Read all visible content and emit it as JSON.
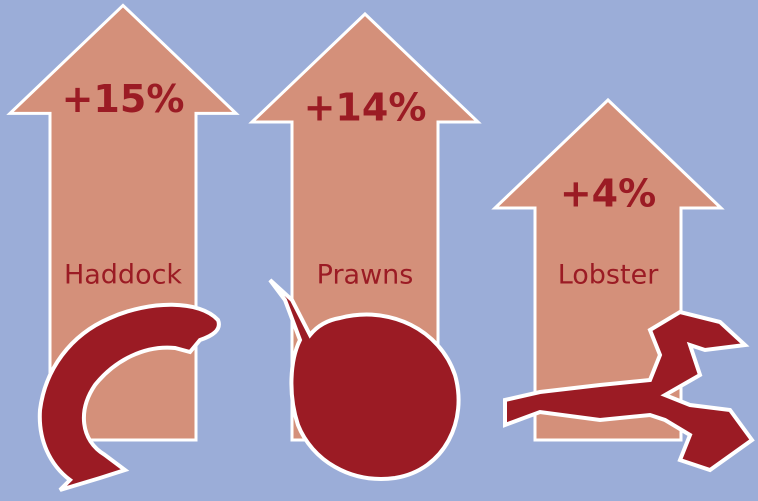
{
  "chart_data": {
    "type": "arrow",
    "categories": [
      "Haddock",
      "Prawns",
      "Lobster"
    ],
    "values": [
      15,
      14,
      4
    ],
    "value_labels": [
      "+15%",
      "+14%",
      "+4%"
    ],
    "color": "#d4907a"
  }
}
